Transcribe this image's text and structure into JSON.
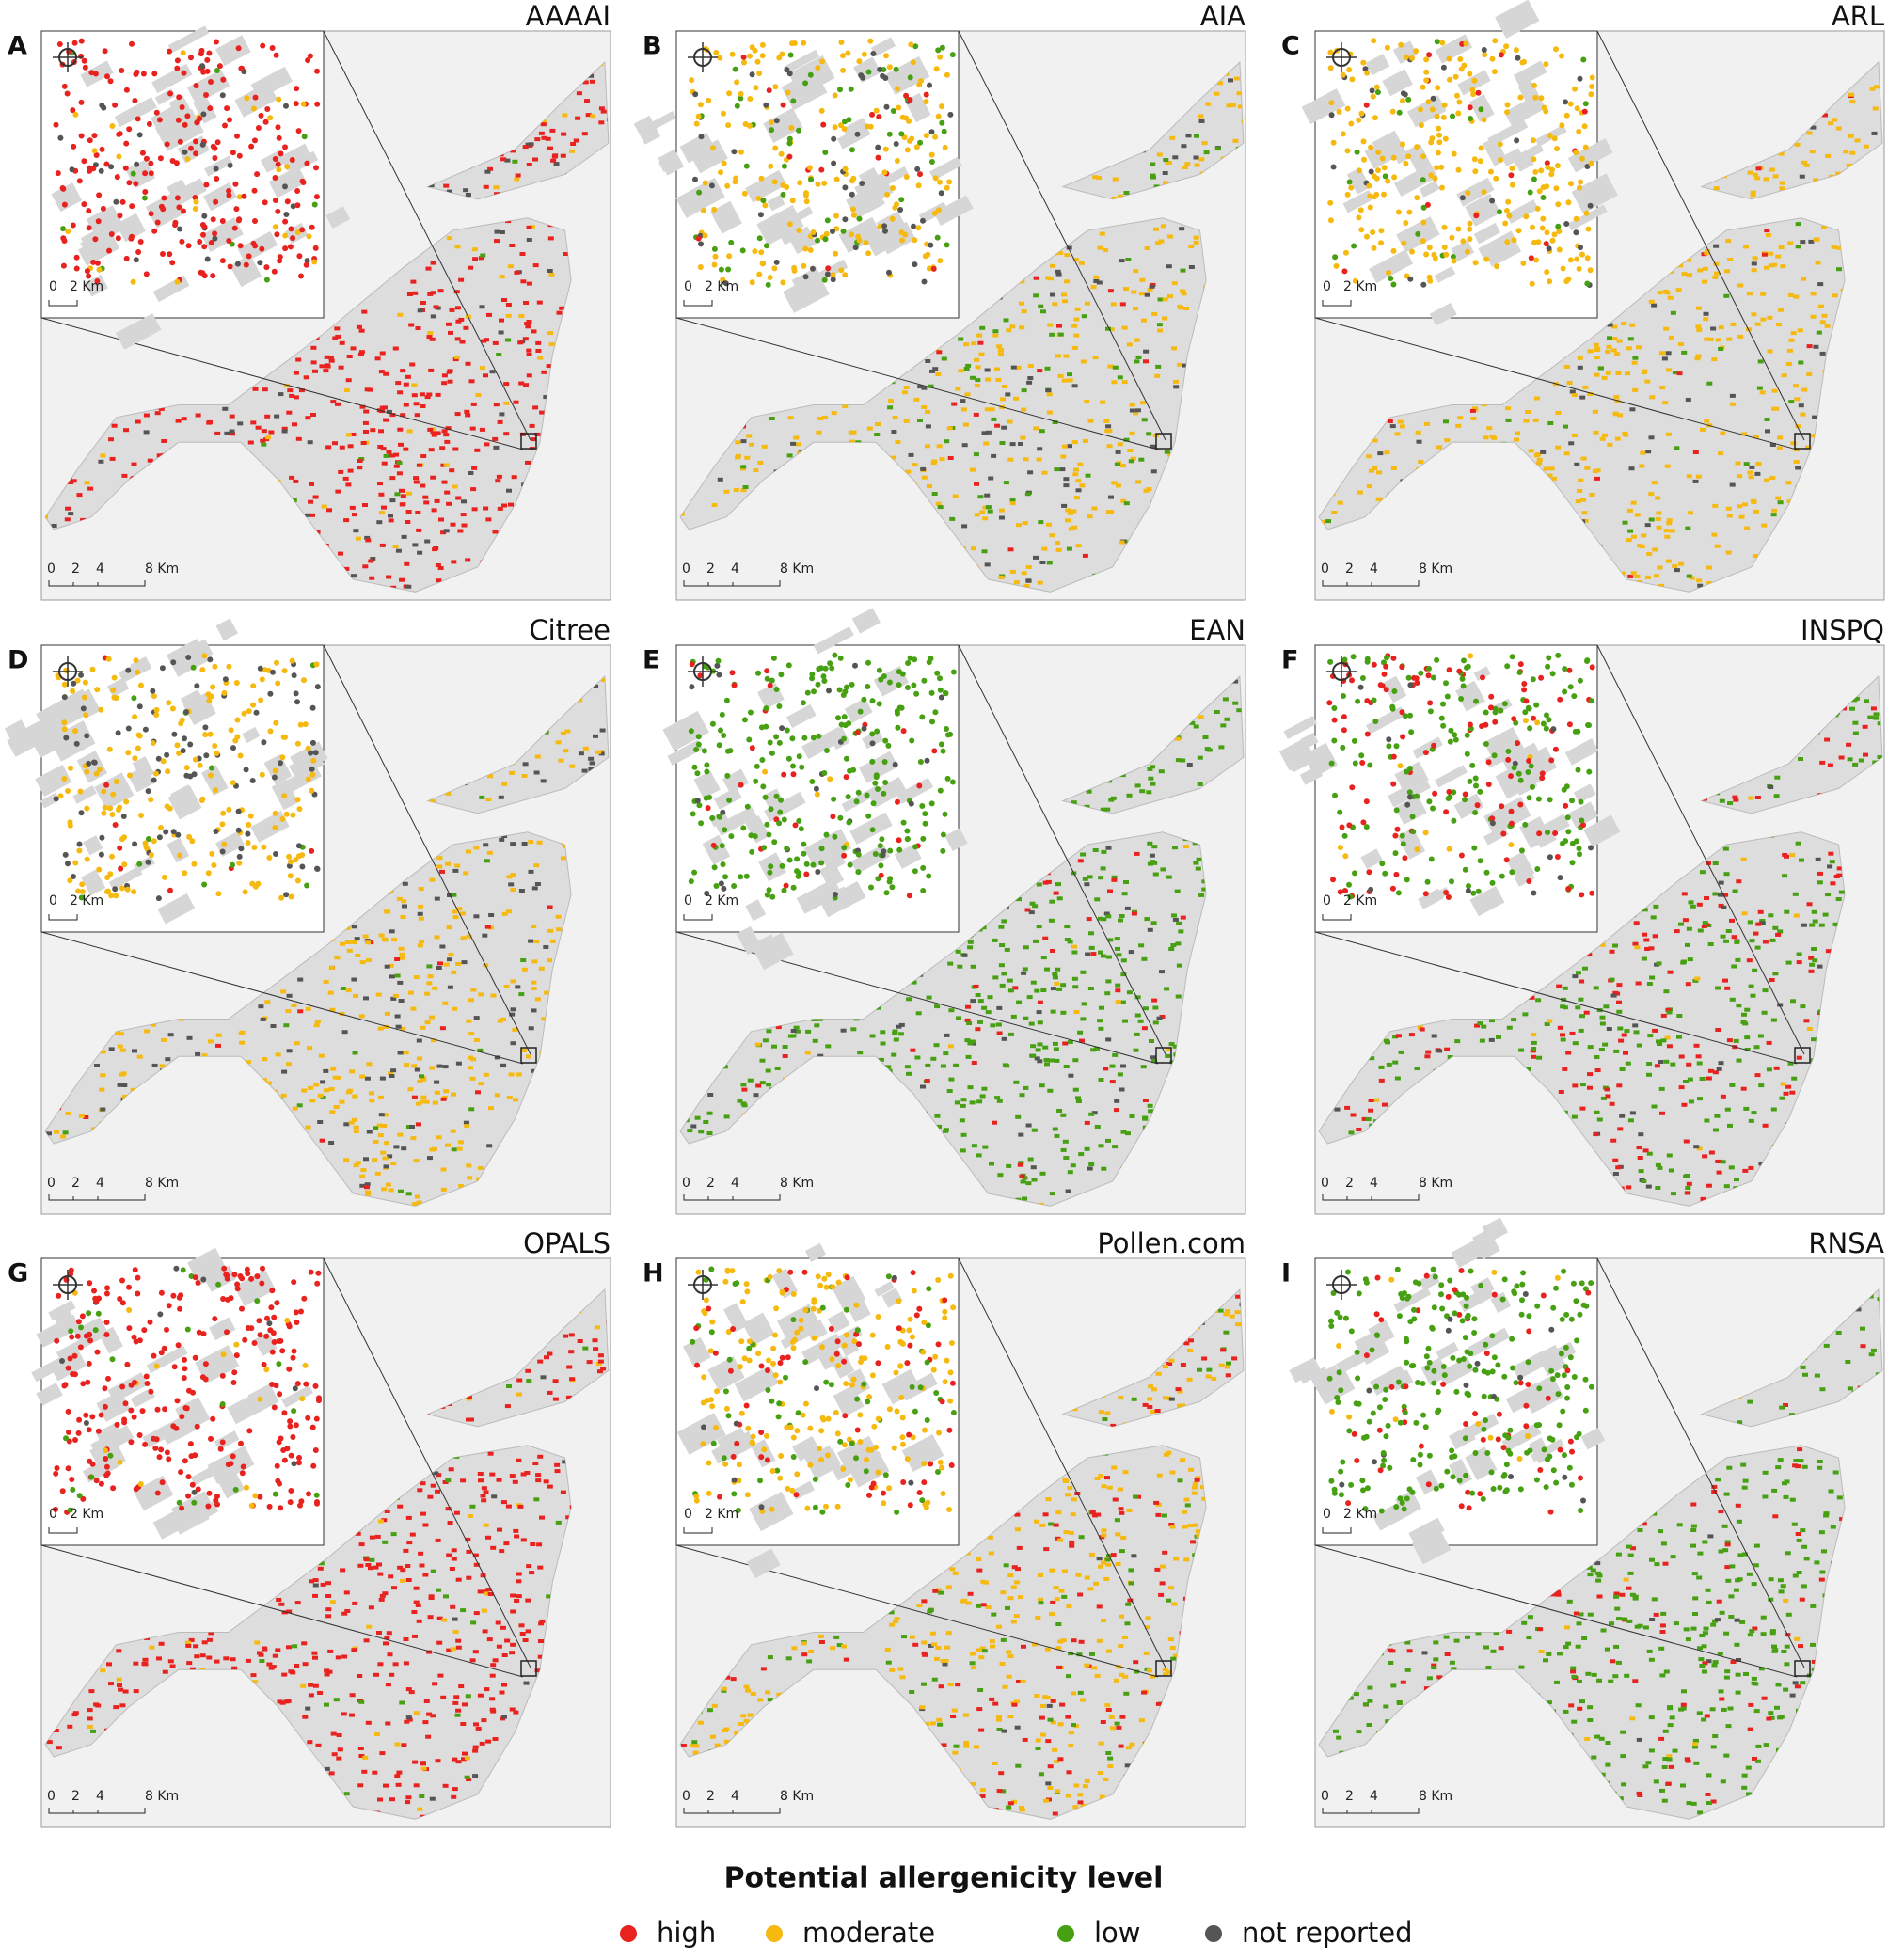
{
  "panels": [
    {
      "letter": "A",
      "title": "AAAAI"
    },
    {
      "letter": "B",
      "title": "AIA"
    },
    {
      "letter": "C",
      "title": "ARL"
    },
    {
      "letter": "D",
      "title": "Citree"
    },
    {
      "letter": "E",
      "title": "EAN"
    },
    {
      "letter": "F",
      "title": "INSPQ"
    },
    {
      "letter": "G",
      "title": "OPALS"
    },
    {
      "letter": "H",
      "title": "Pollen.com"
    },
    {
      "letter": "I",
      "title": "RNSA"
    }
  ],
  "inset_scale": [
    "0",
    "2 Km"
  ],
  "main_scale": [
    "0",
    "2",
    "4",
    "8 Km"
  ],
  "legend": {
    "title": "Potential allergenicity level",
    "items": [
      {
        "label": "high",
        "color": "#e8221f"
      },
      {
        "label": "moderate",
        "color": "#f5b90f"
      },
      {
        "label": "low",
        "color": "#46a012"
      },
      {
        "label": "not reported",
        "color": "#555555"
      }
    ]
  }
}
